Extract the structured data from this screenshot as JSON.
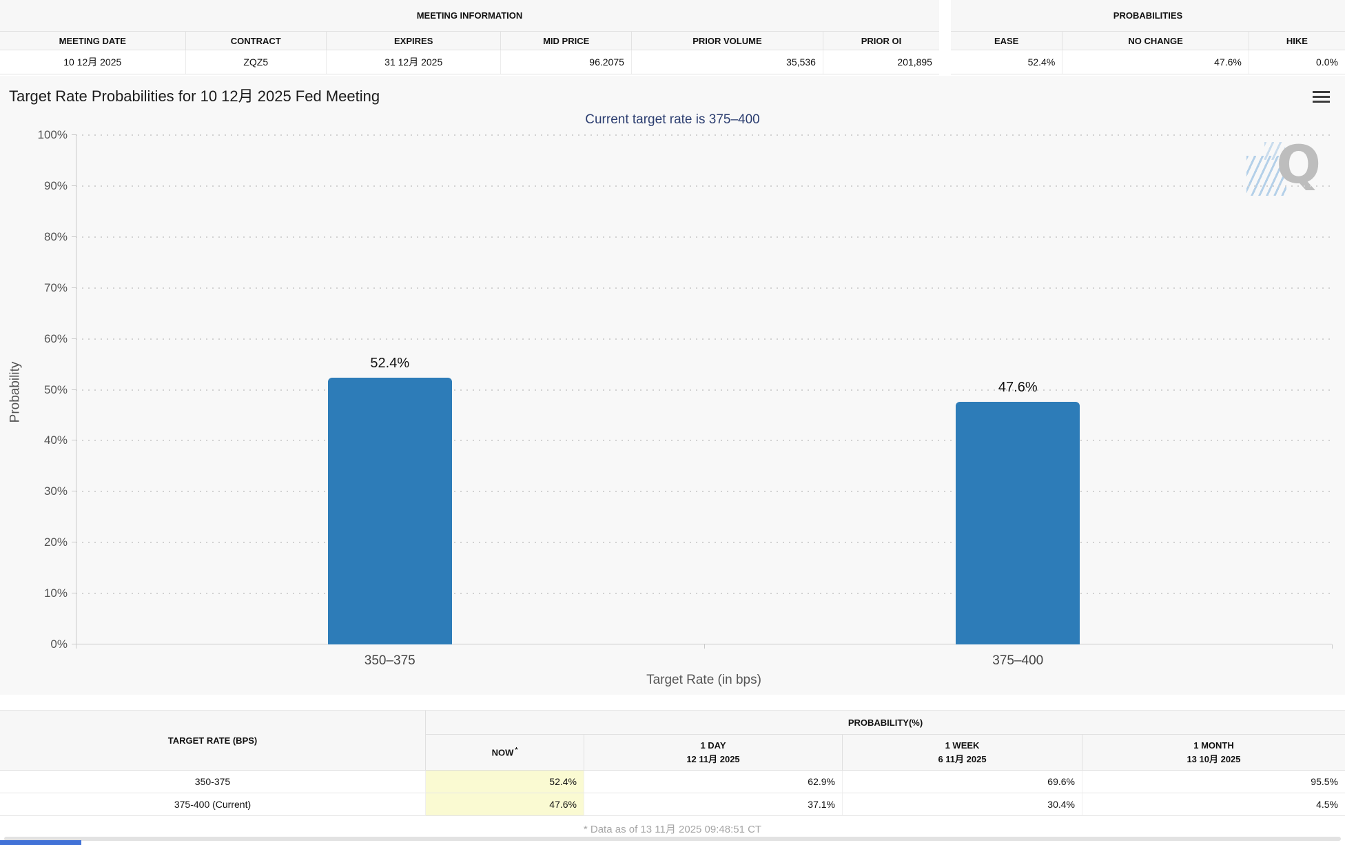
{
  "meeting_information": {
    "title": "MEETING INFORMATION",
    "columns": [
      "MEETING DATE",
      "CONTRACT",
      "EXPIRES",
      "MID PRICE",
      "PRIOR VOLUME",
      "PRIOR OI"
    ],
    "values": [
      "10 12月 2025",
      "ZQZ5",
      "31 12月 2025",
      "96.2075",
      "35,536",
      "201,895"
    ]
  },
  "probabilities_summary": {
    "title": "PROBABILITIES",
    "columns": [
      "EASE",
      "NO CHANGE",
      "HIKE"
    ],
    "values": [
      "52.4%",
      "47.6%",
      "0.0%"
    ]
  },
  "chart_data": {
    "type": "bar",
    "title": "Target Rate Probabilities for 10 12月 2025 Fed Meeting",
    "subtitle": "Current target rate is 375–400",
    "categories": [
      "350–375",
      "375–400"
    ],
    "values": [
      52.4,
      47.6
    ],
    "value_labels": [
      "52.4%",
      "47.6%"
    ],
    "xlabel": "Target Rate (in bps)",
    "ylabel": "Probability",
    "ylim": [
      0,
      100
    ],
    "ytick_step": 10,
    "ytick_suffix": "%",
    "grid": "dotted horizontal",
    "legend": "none",
    "bar_color": "#2d7cb8"
  },
  "icons": {
    "menu": "hamburger-context-menu",
    "watermark_letter": "Q"
  },
  "probability_table": {
    "row_header": "TARGET RATE (BPS)",
    "group_header": "PROBABILITY(%)",
    "columns": [
      {
        "label": "NOW",
        "sup": "*",
        "date": ""
      },
      {
        "label": "1 DAY",
        "sup": "",
        "date": "12 11月 2025"
      },
      {
        "label": "1 WEEK",
        "sup": "",
        "date": "6 11月 2025"
      },
      {
        "label": "1 MONTH",
        "sup": "",
        "date": "13 10月 2025"
      }
    ],
    "rows": [
      {
        "target_rate": "350-375",
        "now": "52.4%",
        "day": "62.9%",
        "week": "69.6%",
        "month": "95.5%"
      },
      {
        "target_rate": "375-400 (Current)",
        "now": "47.6%",
        "day": "37.1%",
        "week": "30.4%",
        "month": "4.5%"
      }
    ],
    "footnote": "* Data as of 13 11月 2025 09:48:51 CT"
  }
}
